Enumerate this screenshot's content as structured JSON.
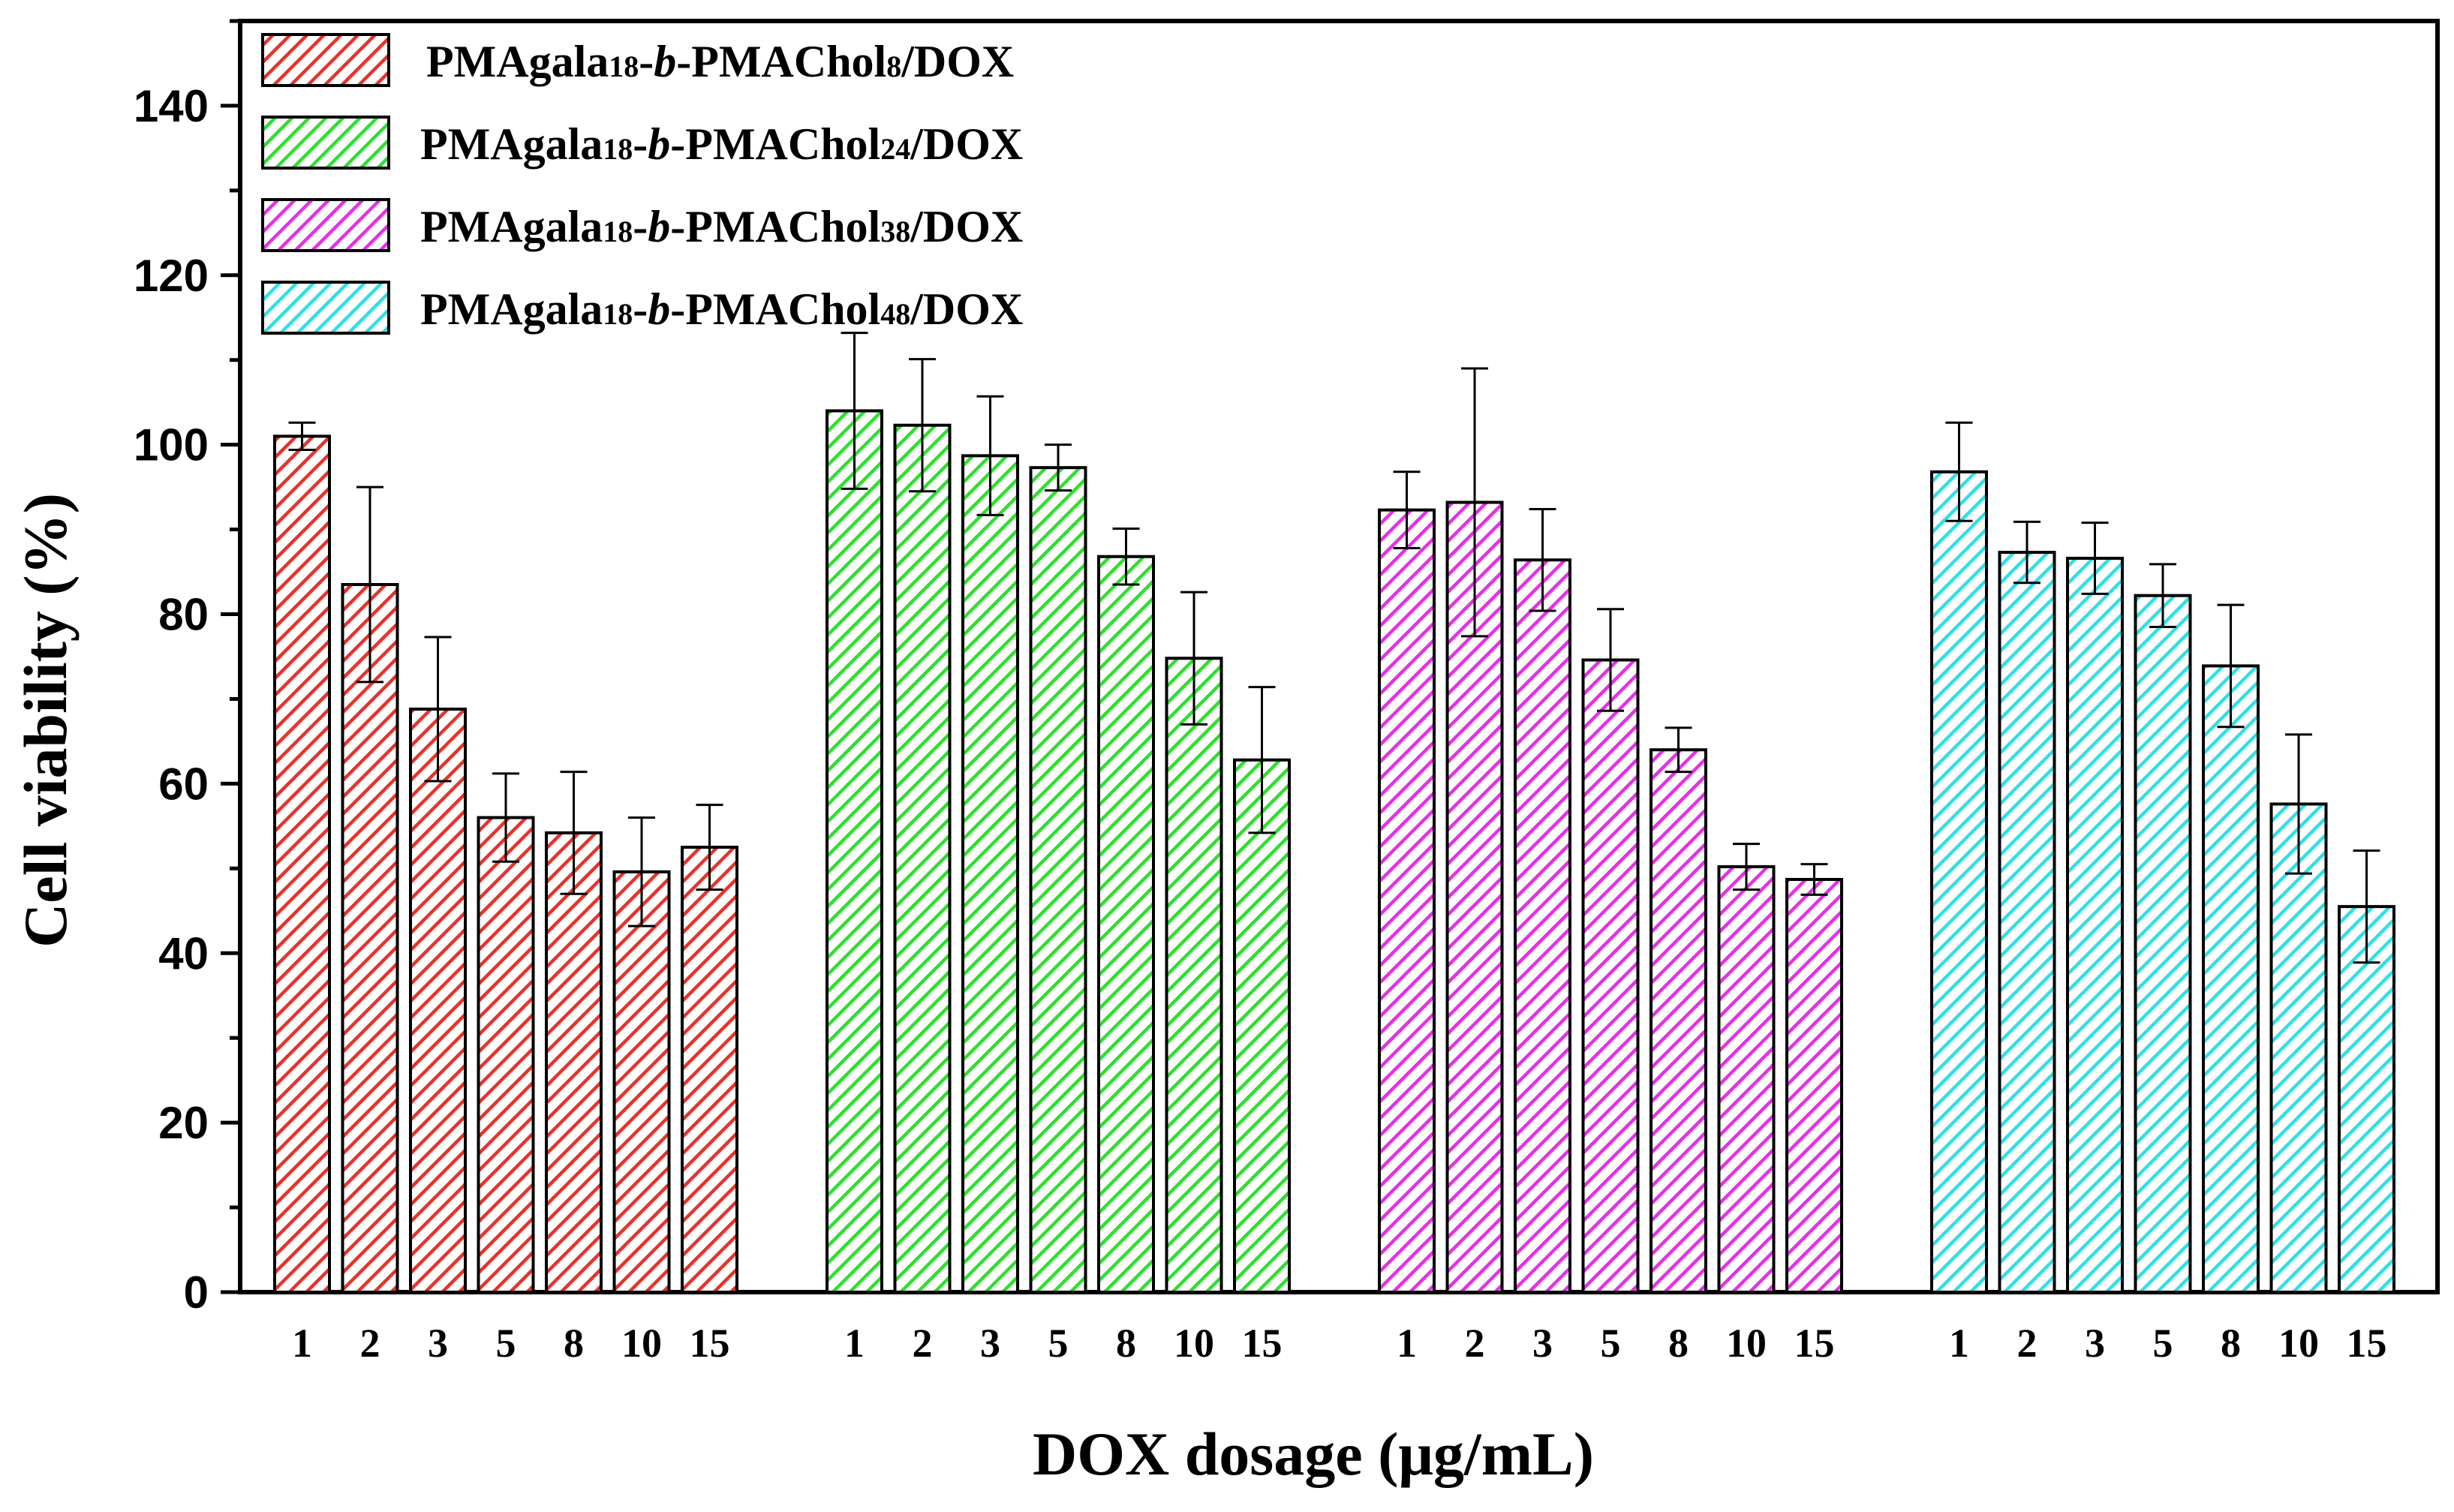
{
  "chart_data": {
    "type": "bar",
    "title": "",
    "xlabel": "DOX dosage (μg/mL)",
    "ylabel": "Cell viability (%)",
    "ylim": [
      0,
      150
    ],
    "yticks": [
      0,
      20,
      40,
      60,
      80,
      100,
      120,
      140
    ],
    "categories": [
      "1",
      "2",
      "3",
      "5",
      "8",
      "10",
      "15"
    ],
    "legend_position": "top-left",
    "pattern": "diagonal-hatch",
    "series": [
      {
        "name": "PMAgala18-b-PMAChol8/DOX",
        "legend": {
          "a": "PMAgala",
          "sub1": "18",
          "b": "-",
          "ital": "b",
          "c": "-PMAChol",
          "sub2": "8",
          "d": "/DOX"
        },
        "color": "#e8322b",
        "values": [
          101,
          83.5,
          68.8,
          56,
          54.2,
          49.6,
          52.5
        ],
        "errors": [
          1.6,
          11.5,
          8.5,
          5.2,
          7.2,
          6.4,
          5.0
        ]
      },
      {
        "name": "PMAgala18-b-PMAChol24/DOX",
        "legend": {
          "a": "PMAgala",
          "sub1": "18",
          "b": "-",
          "ital": "b",
          "c": "-PMAChol",
          "sub2": "24",
          "d": "/DOX"
        },
        "color": "#2ee02e",
        "values": [
          104,
          102.3,
          98.7,
          97.3,
          86.8,
          74.8,
          62.8
        ],
        "errors": [
          9.2,
          7.8,
          7.0,
          2.7,
          3.3,
          7.8,
          8.6
        ]
      },
      {
        "name": "PMAgala18-b-PMAChol38/DOX",
        "legend": {
          "a": "PMAgala",
          "sub1": "18",
          "b": "-",
          "ital": "b",
          "c": "-PMAChol",
          "sub2": "38",
          "d": "/DOX"
        },
        "color": "#e630e6",
        "values": [
          92.3,
          93.2,
          86.4,
          74.6,
          64,
          50.2,
          48.7
        ],
        "errors": [
          4.5,
          15.8,
          6.0,
          6.0,
          2.6,
          2.7,
          1.8
        ]
      },
      {
        "name": "PMAgala18-b-PMAChol48/DOX",
        "legend": {
          "a": "PMAgala",
          "sub1": "18",
          "b": "-",
          "ital": "b",
          "c": "-PMAChol",
          "sub2": "48",
          "d": "/DOX"
        },
        "color": "#2ee0e6",
        "values": [
          96.8,
          87.3,
          86.6,
          82.2,
          73.9,
          57.6,
          45.5
        ],
        "errors": [
          5.8,
          3.6,
          4.2,
          3.7,
          7.2,
          8.2,
          6.6
        ]
      }
    ]
  }
}
